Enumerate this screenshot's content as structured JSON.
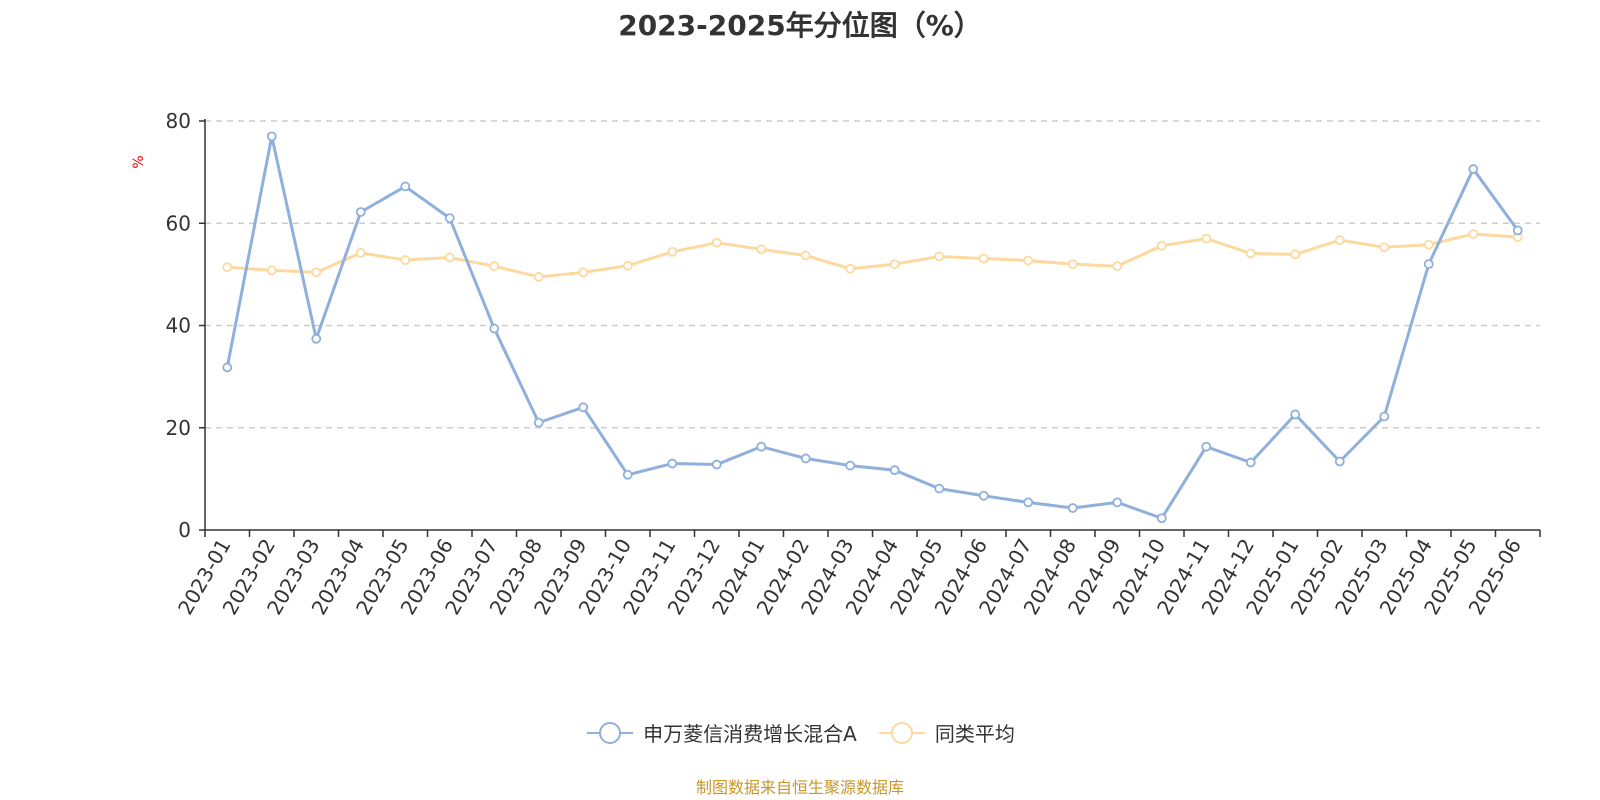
{
  "colors": {
    "series_a": "#8fb0dc",
    "series_b": "#fdd9a0",
    "grid": "#cccccc",
    "axis": "#333333",
    "unit": "#ff0000",
    "source": "#c9962a"
  },
  "legend": {
    "marker_icon": "circle-line-icon"
  },
  "source_note": "制图数据来自恒生聚源数据库",
  "chart_data": {
    "type": "line",
    "title": "2023-2025年分位图（%）",
    "ylabel": "%",
    "xlabel": "",
    "ylim": [
      0,
      80
    ],
    "yticks": [
      0,
      20,
      40,
      60,
      80
    ],
    "grid": true,
    "legend_position": "bottom",
    "categories": [
      "2023-01",
      "2023-02",
      "2023-03",
      "2023-04",
      "2023-05",
      "2023-06",
      "2023-07",
      "2023-08",
      "2023-09",
      "2023-10",
      "2023-11",
      "2023-12",
      "2024-01",
      "2024-02",
      "2024-03",
      "2024-04",
      "2024-05",
      "2024-06",
      "2024-07",
      "2024-08",
      "2024-09",
      "2024-10",
      "2024-11",
      "2024-12",
      "2025-01",
      "2025-02",
      "2025-03",
      "2025-04",
      "2025-05",
      "2025-06"
    ],
    "series": [
      {
        "name": "申万菱信消费增长混合A",
        "values": [
          31.8,
          77.0,
          37.4,
          62.2,
          67.2,
          61.0,
          39.4,
          21.0,
          24.0,
          10.8,
          13.0,
          12.8,
          16.3,
          14.0,
          12.6,
          11.7,
          8.1,
          6.7,
          5.4,
          4.3,
          5.4,
          2.3,
          16.3,
          13.2,
          22.6,
          13.4,
          22.2,
          52.0,
          70.6,
          58.6
        ]
      },
      {
        "name": "同类平均",
        "values": [
          51.4,
          50.8,
          50.4,
          54.2,
          52.8,
          53.3,
          51.6,
          49.5,
          50.4,
          51.7,
          54.4,
          56.2,
          54.9,
          53.7,
          51.1,
          52.0,
          53.5,
          53.1,
          52.7,
          52.0,
          51.6,
          55.6,
          57.0,
          54.1,
          53.9,
          56.7,
          55.3,
          55.8,
          57.9,
          57.3
        ]
      }
    ]
  }
}
